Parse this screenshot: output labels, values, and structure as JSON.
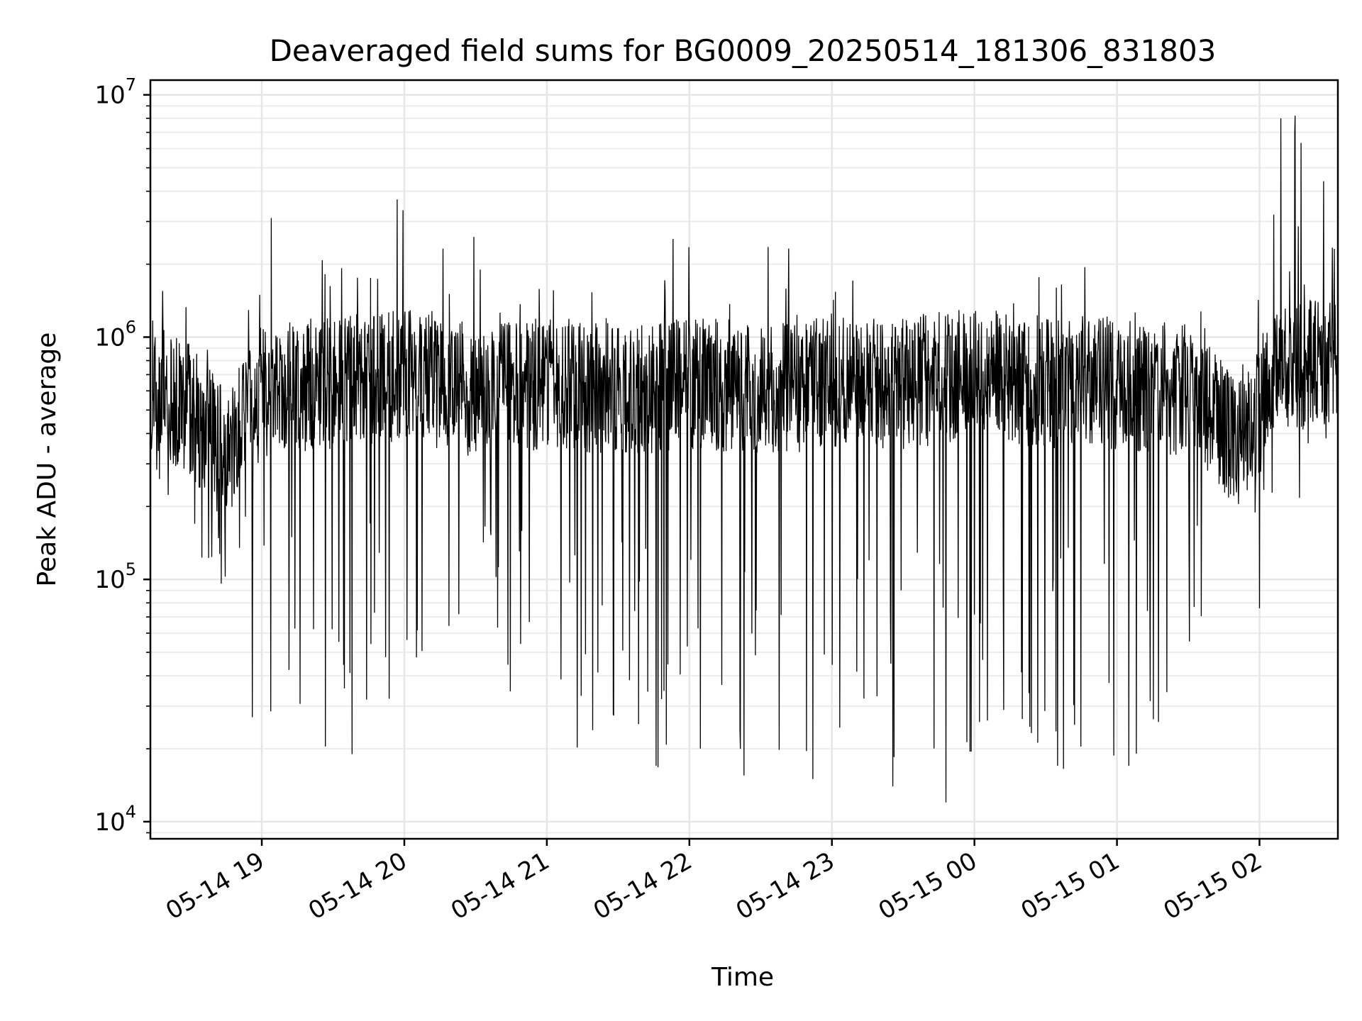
{
  "chart_data": {
    "type": "line",
    "title": "Deaveraged field sums for BG0009_20250514_181306_831803",
    "xlabel": "Time",
    "ylabel": "Peak ADU - average",
    "xlim": [
      "2025-05-14 18:13:06",
      "2025-05-15 02:33:00"
    ],
    "ylim": [
      8500,
      11500000
    ],
    "yscale": "log",
    "grid": true,
    "x_ticks": [
      "05-14 19",
      "05-14 20",
      "05-14 21",
      "05-14 22",
      "05-14 23",
      "05-15 00",
      "05-15 01",
      "05-15 02"
    ],
    "y_ticks": [
      {
        "base": "10",
        "exp": "4",
        "value": 10000
      },
      {
        "base": "10",
        "exp": "5",
        "value": 100000
      },
      {
        "base": "10",
        "exp": "6",
        "value": 1000000
      },
      {
        "base": "10",
        "exp": "7",
        "value": 10000000
      }
    ],
    "series": [
      {
        "color": "#000000",
        "sampling": "approximately every 5 seconds (dense noisy signal)",
        "envelope_x": [
          "2025-05-14 18:13",
          "2025-05-14 18:30",
          "2025-05-14 18:45",
          "2025-05-14 19:00",
          "2025-05-14 19:30",
          "2025-05-14 20:00",
          "2025-05-14 20:30",
          "2025-05-14 21:00",
          "2025-05-14 21:30",
          "2025-05-14 22:00",
          "2025-05-14 22:30",
          "2025-05-14 23:00",
          "2025-05-14 23:30",
          "2025-05-15 00:00",
          "2025-05-15 00:30",
          "2025-05-15 01:00",
          "2025-05-15 01:30",
          "2025-05-15 01:55",
          "2025-05-15 02:05",
          "2025-05-15 02:33"
        ],
        "typical_values": [
          650000,
          500000,
          320000,
          600000,
          650000,
          700000,
          600000,
          650000,
          600000,
          650000,
          620000,
          640000,
          650000,
          700000,
          650000,
          650000,
          600000,
          330000,
          750000,
          800000
        ],
        "peak_values": [
          2100000,
          2000000,
          1400000,
          3100000,
          2300000,
          3700000,
          2700000,
          2100000,
          2500000,
          2600000,
          2500000,
          2600000,
          2600000,
          2600000,
          2600000,
          2500000,
          2200000,
          850000,
          8000000,
          8200000
        ],
        "dip_values": [
          280000,
          140000,
          90000,
          27000,
          19000,
          25000,
          30000,
          19000,
          17000,
          15000,
          15000,
          20000,
          12000,
          18000,
          16000,
          17000,
          24000,
          280000,
          75000,
          450000
        ],
        "spikes": [
          {
            "x": "2025-05-14 19:57",
            "y": 3700000
          },
          {
            "x": "2025-05-14 19:04",
            "y": 3100000
          },
          {
            "x": "2025-05-15 02:09",
            "y": 8000000
          },
          {
            "x": "2025-05-15 02:15",
            "y": 8200000
          },
          {
            "x": "2025-05-15 02:27",
            "y": 4400000
          },
          {
            "x": "2025-05-15 02:06",
            "y": 3200000
          },
          {
            "x": "2025-05-14 23:48",
            "y": 12000
          },
          {
            "x": "2025-05-14 22:23",
            "y": 15500
          },
          {
            "x": "2025-05-14 22:52",
            "y": 15000
          },
          {
            "x": "2025-05-14 19:38",
            "y": 19000
          },
          {
            "x": "2025-05-14 18:56",
            "y": 27000
          },
          {
            "x": "2025-05-14 21:46",
            "y": 17000
          },
          {
            "x": "2025-05-15 00:35",
            "y": 17000
          },
          {
            "x": "2025-05-15 01:05",
            "y": 17000
          },
          {
            "x": "2025-05-15 02:00",
            "y": 76000
          }
        ]
      }
    ]
  }
}
